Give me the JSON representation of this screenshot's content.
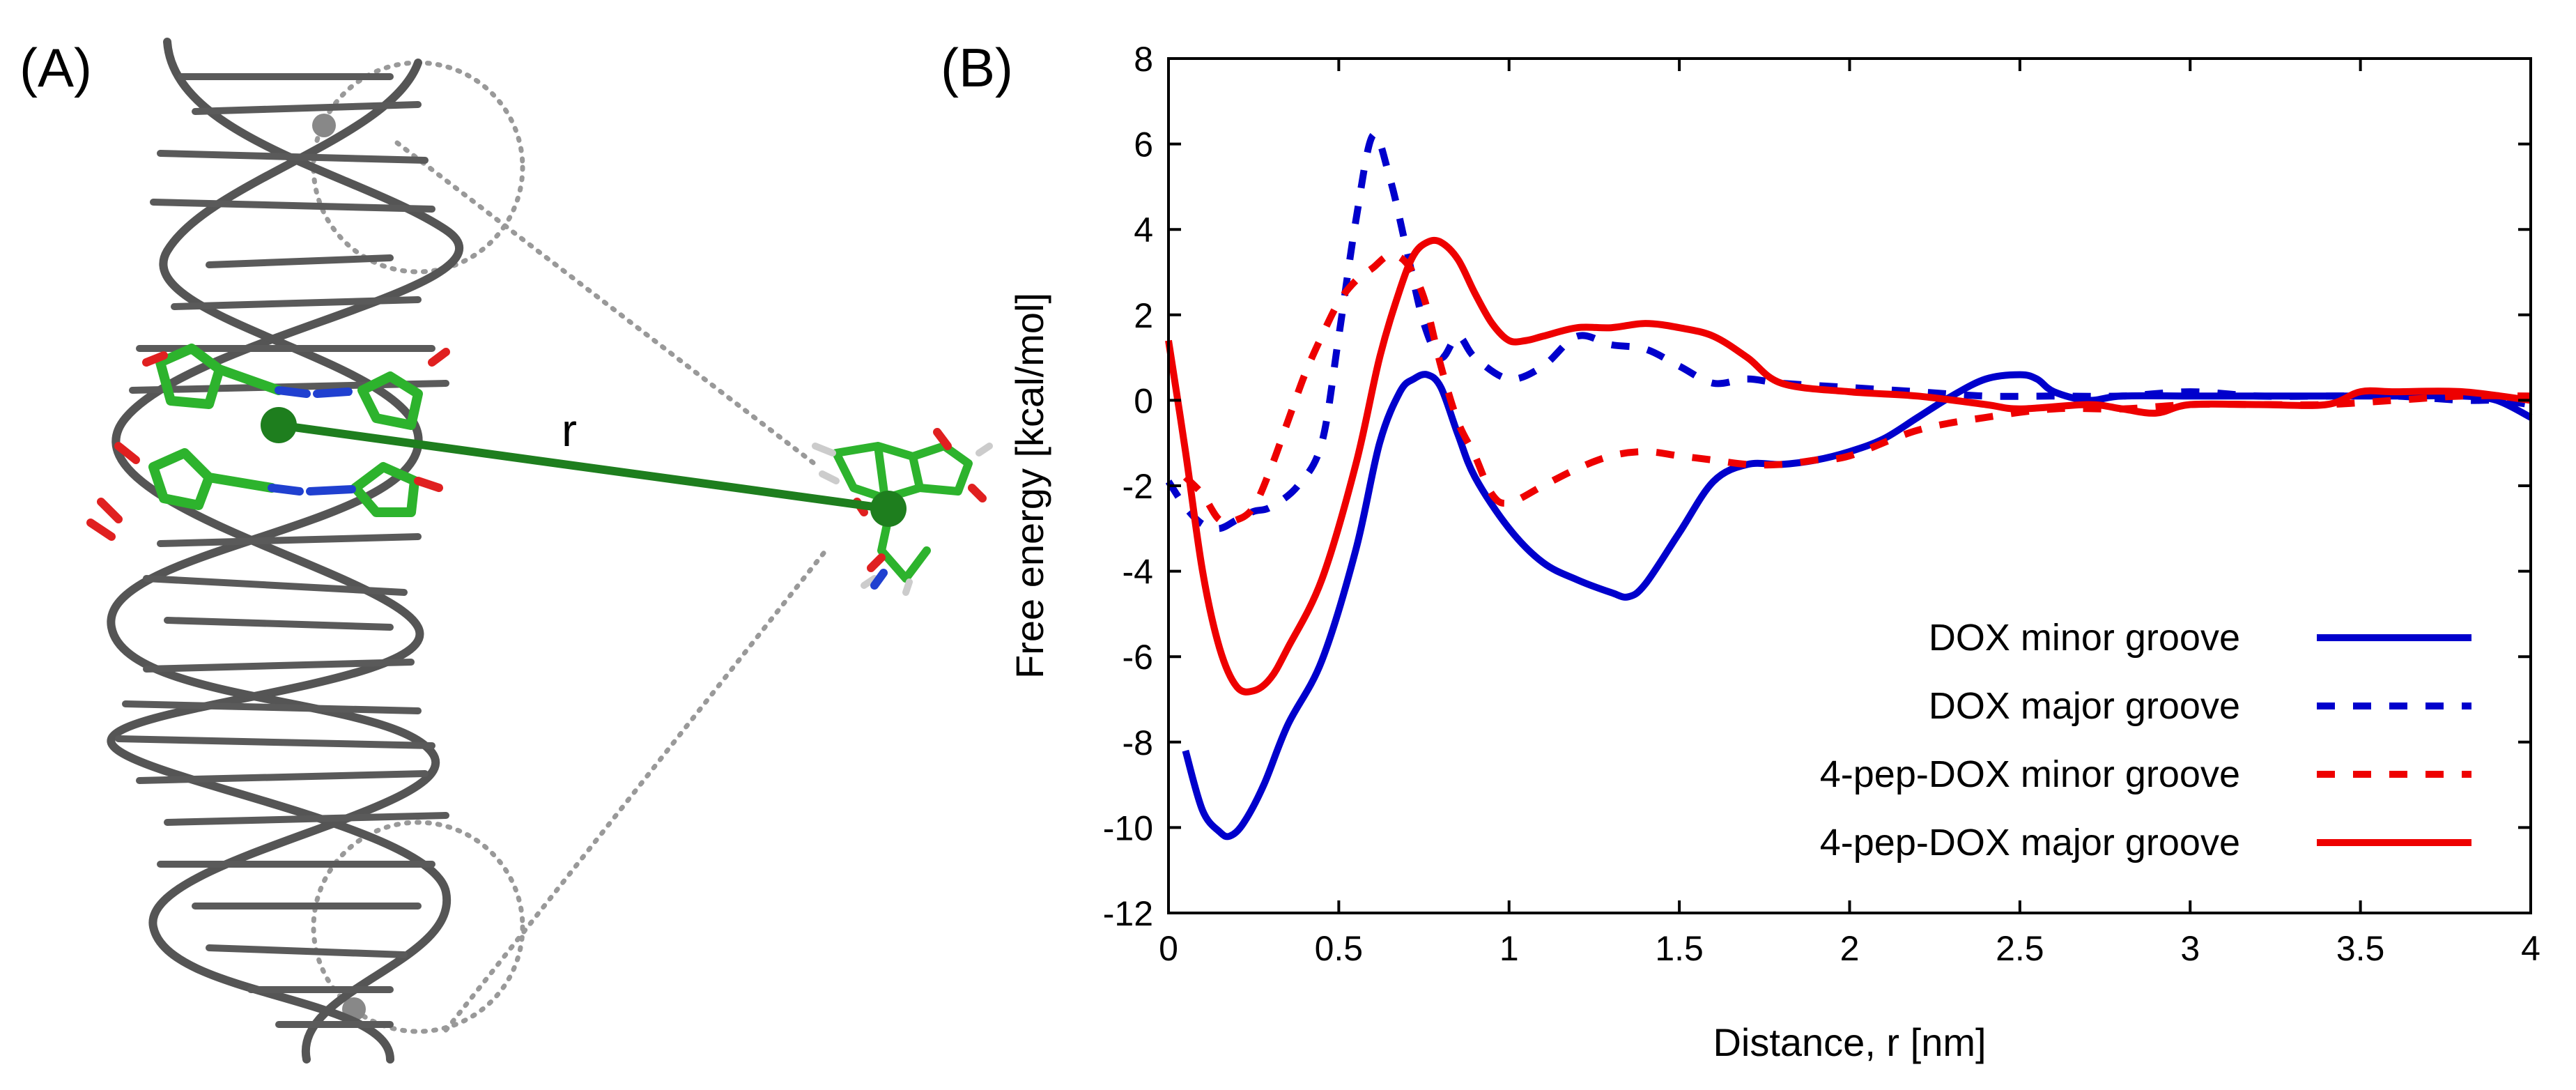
{
  "panels": {
    "a_label": "(A)",
    "b_label": "(B)"
  },
  "molecule": {
    "distance_label": "r",
    "colors": {
      "backbone": "#555555",
      "carbon": "#2db32d",
      "oxygen": "#e02020",
      "nitrogen": "#2040d0",
      "hydrogen": "#f2f2f2",
      "distance_line": "#1e7e1e",
      "guide": "#999999"
    }
  },
  "chart_data": {
    "type": "line",
    "title": "",
    "xlabel": "Distance, r [nm]",
    "ylabel": "Free energy [kcal/mol]",
    "xlim": [
      0,
      4
    ],
    "ylim": [
      -12,
      8
    ],
    "xticks": [
      "0",
      "0.5",
      "1",
      "1.5",
      "2",
      "2.5",
      "3",
      "3.5",
      "4"
    ],
    "yticks": [
      "8",
      "6",
      "4",
      "2",
      "0",
      "-2",
      "-4",
      "-6",
      "-8",
      "-10",
      "-12"
    ],
    "grid": false,
    "legend_position": "bottom-right",
    "series": [
      {
        "name": "DOX minor groove",
        "color": "#0000cc",
        "style": "solid",
        "x": [
          0.05,
          0.1,
          0.15,
          0.18,
          0.22,
          0.28,
          0.35,
          0.45,
          0.55,
          0.62,
          0.68,
          0.72,
          0.76,
          0.8,
          0.85,
          0.9,
          1.0,
          1.1,
          1.2,
          1.3,
          1.35,
          1.4,
          1.5,
          1.6,
          1.7,
          1.8,
          1.9,
          2.0,
          2.1,
          2.2,
          2.3,
          2.4,
          2.5,
          2.55,
          2.6,
          2.7,
          2.8,
          3.0,
          3.2,
          3.4,
          3.6,
          3.8,
          3.9,
          4.0
        ],
        "y": [
          -8.2,
          -9.6,
          -10.1,
          -10.2,
          -9.9,
          -9.0,
          -7.6,
          -6.1,
          -3.5,
          -1.0,
          0.2,
          0.5,
          0.6,
          0.3,
          -0.8,
          -1.8,
          -3.0,
          -3.8,
          -4.2,
          -4.5,
          -4.6,
          -4.3,
          -3.1,
          -1.9,
          -1.5,
          -1.5,
          -1.4,
          -1.2,
          -0.9,
          -0.4,
          0.1,
          0.5,
          0.6,
          0.5,
          0.2,
          0.0,
          0.1,
          0.1,
          0.1,
          0.1,
          0.1,
          0.1,
          0.0,
          -0.4
        ]
      },
      {
        "name": "DOX major groove",
        "color": "#0000cc",
        "style": "dashed",
        "x": [
          0.0,
          0.05,
          0.1,
          0.15,
          0.2,
          0.25,
          0.3,
          0.38,
          0.45,
          0.5,
          0.55,
          0.6,
          0.65,
          0.7,
          0.75,
          0.8,
          0.85,
          0.9,
          1.0,
          1.1,
          1.2,
          1.3,
          1.4,
          1.5,
          1.6,
          1.7,
          1.8,
          2.0,
          2.2,
          2.4,
          2.6,
          2.8,
          3.0,
          3.2,
          3.4,
          3.6,
          3.8,
          3.9,
          4.0
        ],
        "y": [
          -1.9,
          -2.5,
          -2.9,
          -3.0,
          -2.8,
          -2.6,
          -2.5,
          -2.0,
          -1.0,
          1.5,
          4.2,
          6.2,
          5.2,
          3.5,
          1.8,
          1.0,
          1.5,
          1.0,
          0.5,
          0.8,
          1.5,
          1.3,
          1.2,
          0.8,
          0.4,
          0.5,
          0.4,
          0.3,
          0.2,
          0.1,
          0.1,
          0.1,
          0.2,
          0.1,
          0.1,
          0.1,
          0.0,
          0.0,
          -0.1
        ]
      },
      {
        "name": "4-pep-DOX minor groove",
        "color": "#ee0000",
        "style": "dashed",
        "x": [
          0.05,
          0.1,
          0.15,
          0.2,
          0.25,
          0.3,
          0.35,
          0.4,
          0.45,
          0.5,
          0.55,
          0.6,
          0.65,
          0.7,
          0.75,
          0.8,
          0.85,
          0.9,
          0.95,
          1.0,
          1.1,
          1.2,
          1.3,
          1.4,
          1.5,
          1.6,
          1.7,
          1.8,
          1.9,
          2.0,
          2.2,
          2.4,
          2.6,
          2.8,
          3.0,
          3.2,
          3.4,
          3.6,
          3.8,
          4.0
        ],
        "y": [
          -1.8,
          -2.2,
          -2.8,
          -2.8,
          -2.5,
          -1.6,
          -0.5,
          0.6,
          1.5,
          2.3,
          2.8,
          3.1,
          3.4,
          3.2,
          2.4,
          0.8,
          -0.5,
          -1.3,
          -2.2,
          -2.4,
          -2.0,
          -1.6,
          -1.3,
          -1.2,
          -1.3,
          -1.4,
          -1.5,
          -1.5,
          -1.4,
          -1.3,
          -0.7,
          -0.4,
          -0.2,
          -0.2,
          -0.1,
          -0.1,
          -0.1,
          0.0,
          0.1,
          0.1
        ]
      },
      {
        "name": "4-pep-DOX major groove",
        "color": "#ee0000",
        "style": "solid",
        "x": [
          0.0,
          0.05,
          0.1,
          0.15,
          0.2,
          0.25,
          0.3,
          0.35,
          0.45,
          0.55,
          0.62,
          0.68,
          0.72,
          0.76,
          0.8,
          0.85,
          0.9,
          0.95,
          1.0,
          1.05,
          1.1,
          1.2,
          1.3,
          1.4,
          1.5,
          1.6,
          1.7,
          1.8,
          2.0,
          2.2,
          2.4,
          2.5,
          2.7,
          2.8,
          2.9,
          3.0,
          3.2,
          3.4,
          3.5,
          3.6,
          3.8,
          4.0
        ],
        "y": [
          1.4,
          -1.2,
          -4.0,
          -5.8,
          -6.7,
          -6.8,
          -6.5,
          -5.8,
          -4.2,
          -1.5,
          1.0,
          2.6,
          3.4,
          3.7,
          3.7,
          3.3,
          2.5,
          1.8,
          1.4,
          1.4,
          1.5,
          1.7,
          1.7,
          1.8,
          1.7,
          1.5,
          1.0,
          0.4,
          0.2,
          0.1,
          -0.1,
          -0.2,
          -0.1,
          -0.2,
          -0.3,
          -0.1,
          -0.1,
          -0.1,
          0.2,
          0.2,
          0.2,
          0.0
        ]
      }
    ]
  }
}
